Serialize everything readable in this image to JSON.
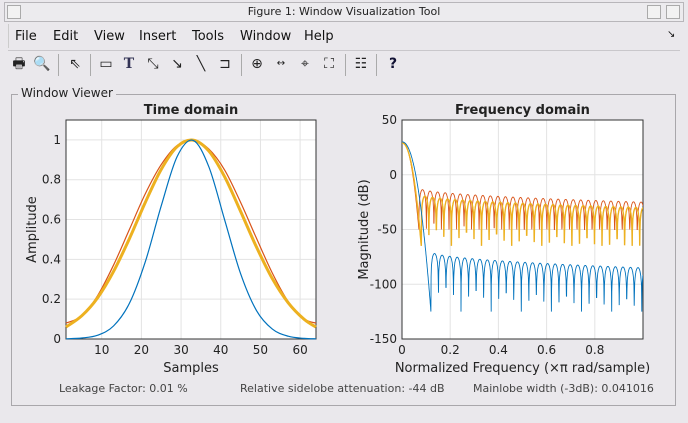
{
  "window": {
    "title": "Figure 1: Window Visualization Tool"
  },
  "menu": [
    "File",
    "Edit",
    "View",
    "Insert",
    "Tools",
    "Window",
    "Help"
  ],
  "menu_underline": [
    "F",
    "E",
    "i",
    "I",
    "T",
    "W",
    "H"
  ],
  "toolbar": [
    "print-icon",
    "print-preview-icon",
    "select-arrow-icon",
    "rectangle-icon",
    "text-icon",
    "double-arrow-icon",
    "arrow-icon",
    "line-icon",
    "pin-icon",
    "zoom-in-icon",
    "pan-icon",
    "data-cursor-icon",
    "fit-icon",
    "legend-icon",
    "help-icon"
  ],
  "panel_title": "Window Viewer",
  "stats": {
    "leakage": "Leakage Factor: 0.01 %",
    "sidelobe": "Relative sidelobe attenuation: -44 dB",
    "mainlobe": "Mainlobe width (-3dB): 0.041016"
  },
  "colors": {
    "blue": "#0072bd",
    "red": "#d95319",
    "yellow": "#edb120"
  },
  "chart_data": [
    {
      "type": "line",
      "title": "Time domain",
      "xlabel": "Samples",
      "ylabel": "Amplitude",
      "xlim": [
        1,
        64
      ],
      "ylim": [
        0,
        1.1
      ],
      "xticks": [
        "10",
        "20",
        "30",
        "40",
        "50",
        "60"
      ],
      "yticks": [
        "0",
        "0.2",
        "0.4",
        "0.6",
        "0.8",
        "1"
      ],
      "grid": true,
      "x": [
        1,
        5,
        9,
        13,
        17,
        21,
        25,
        29,
        33,
        37,
        41,
        45,
        49,
        53,
        57,
        61,
        64
      ],
      "series": [
        {
          "name": "red",
          "values": [
            0.08,
            0.116,
            0.219,
            0.372,
            0.551,
            0.73,
            0.876,
            0.972,
            0.999,
            0.954,
            0.848,
            0.686,
            0.506,
            0.331,
            0.188,
            0.101,
            0.08
          ]
        },
        {
          "name": "yellow",
          "values": [
            0.06,
            0.117,
            0.208,
            0.34,
            0.505,
            0.687,
            0.852,
            0.966,
            0.999,
            0.944,
            0.814,
            0.641,
            0.462,
            0.303,
            0.182,
            0.099,
            0.06
          ]
        },
        {
          "name": "blue",
          "values": [
            0.001,
            0.005,
            0.019,
            0.066,
            0.18,
            0.389,
            0.669,
            0.916,
            0.998,
            0.865,
            0.597,
            0.328,
            0.143,
            0.05,
            0.014,
            0.003,
            0.001
          ]
        }
      ]
    },
    {
      "type": "line",
      "title": "Frequency domain",
      "xlabel": "Normalized Frequency  (×π rad/sample)",
      "ylabel": "Magnitude (dB)",
      "xlim": [
        0,
        1
      ],
      "ylim": [
        -150,
        50
      ],
      "xticks": [
        "0",
        "0.2",
        "0.4",
        "0.6",
        "0.8"
      ],
      "yticks": [
        "50",
        "0",
        "-50",
        "-100",
        "-150"
      ],
      "grid": true,
      "series": [
        {
          "name": "red",
          "peak_dB": 30,
          "mainlobe_end": 0.07,
          "sidelobe_start_dB": -12,
          "sidelobe_end_dB": -25,
          "null_dB": -50
        },
        {
          "name": "yellow",
          "peak_dB": 29,
          "mainlobe_end": 0.08,
          "sidelobe_start_dB": -18,
          "sidelobe_end_dB": -30,
          "null_dB": -65
        },
        {
          "name": "blue",
          "peak_dB": 30,
          "mainlobe_end": 0.12,
          "sidelobe_start_dB": -70,
          "sidelobe_end_dB": -85,
          "null_dB": -125
        }
      ]
    }
  ]
}
